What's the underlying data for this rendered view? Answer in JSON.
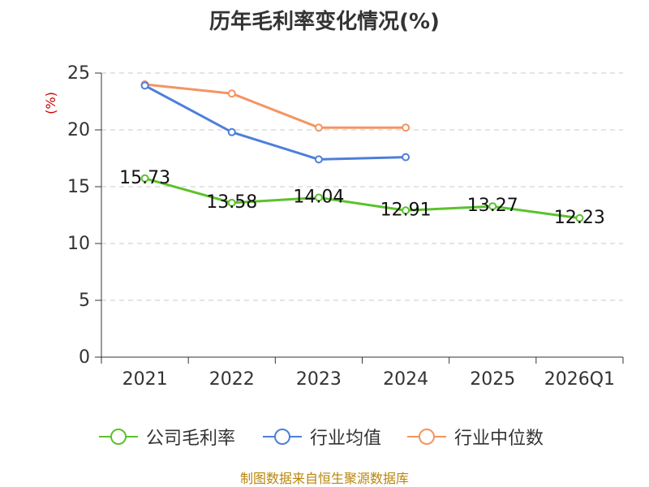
{
  "chart_data": {
    "type": "line",
    "title": "历年毛利率变化情况(%)",
    "ylabel": "(%)",
    "xlabel": "",
    "categories": [
      "2021",
      "2022",
      "2023",
      "2024",
      "2025",
      "2026Q1"
    ],
    "ylim": [
      0,
      25
    ],
    "yticks": [
      0,
      5,
      10,
      15,
      20,
      25
    ],
    "grid": true,
    "legend_position": "bottom",
    "series": [
      {
        "name": "公司毛利率",
        "color": "#5cc12c",
        "values": [
          15.73,
          13.58,
          14.04,
          12.91,
          13.27,
          12.23
        ],
        "labels": [
          "15.73",
          "13.58",
          "14.04",
          "12.91",
          "13.27",
          "12.23"
        ]
      },
      {
        "name": "行业均值",
        "color": "#4e7fd9",
        "values": [
          23.9,
          19.8,
          17.4,
          17.6,
          null,
          null
        ]
      },
      {
        "name": "行业中位数",
        "color": "#f39562",
        "values": [
          24.0,
          23.2,
          20.2,
          20.2,
          null,
          null
        ]
      }
    ]
  },
  "footer": {
    "source": "制图数据来自恒生聚源数据库"
  }
}
